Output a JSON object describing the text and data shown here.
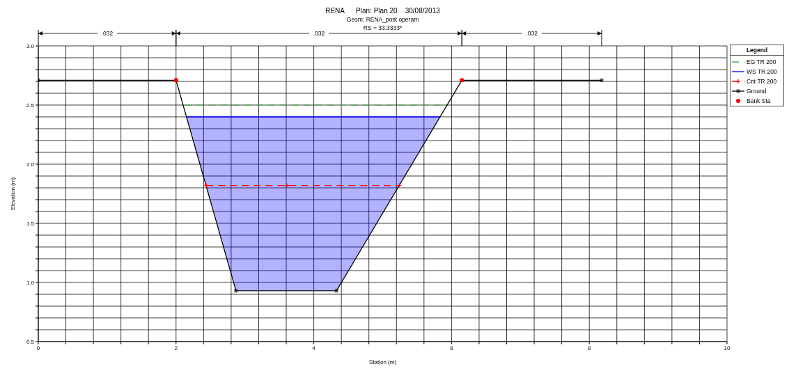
{
  "chart_data": {
    "type": "line",
    "title": "RENA      Plan: Plan 20    30/08/2013",
    "subtitle": "Geom: RENA_post operam",
    "annotations": [
      "RS = 33.3333*",
      ".032",
      ".032",
      ".032"
    ],
    "xlabel": "Station (m)",
    "ylabel": "Elevation (m)",
    "legend_title": "Legend",
    "legend": "right",
    "grid": true,
    "xlim": [
      0,
      10
    ],
    "ylim": [
      0.5,
      3.0
    ],
    "xticks": [
      0,
      {
        "value": 0.4,
        "label": null
      },
      {
        "value": 0.8,
        "label": null
      },
      {
        "value": 1.2,
        "label": null
      },
      {
        "value": 1.6,
        "label": null
      },
      2,
      {
        "value": 2.4,
        "label": null
      },
      {
        "value": 2.8,
        "label": null
      },
      {
        "value": 3.2,
        "label": null
      },
      {
        "value": 3.6,
        "label": null
      },
      4,
      {
        "value": 4.4,
        "label": null
      },
      {
        "value": 4.8,
        "label": null
      },
      {
        "value": 5.2,
        "label": null
      },
      {
        "value": 5.6,
        "label": null
      },
      6,
      {
        "value": 6.4,
        "label": null
      },
      {
        "value": 6.8,
        "label": null
      },
      {
        "value": 7.2,
        "label": null
      },
      {
        "value": 7.6,
        "label": null
      },
      8,
      {
        "value": 8.4,
        "label": null
      },
      {
        "value": 8.8,
        "label": null
      },
      {
        "value": 9.2,
        "label": null
      },
      {
        "value": 9.6,
        "label": null
      },
      10
    ],
    "yticks": [
      0.5,
      {
        "value": 0.6,
        "label": null
      },
      {
        "value": 0.7,
        "label": null
      },
      {
        "value": 0.8,
        "label": null
      },
      {
        "value": 0.9,
        "label": null
      },
      {
        "value": 1,
        "label": "1.0"
      },
      {
        "value": 1.1,
        "label": null
      },
      {
        "value": 1.2,
        "label": null
      },
      {
        "value": 1.3,
        "label": null
      },
      {
        "value": 1.4,
        "label": null
      },
      1.5,
      {
        "value": 1.6,
        "label": null
      },
      {
        "value": 1.7,
        "label": null
      },
      {
        "value": 1.8,
        "label": null
      },
      {
        "value": 1.9,
        "label": null
      },
      {
        "value": 2,
        "label": "2.0"
      },
      {
        "value": 2.1,
        "label": null
      },
      {
        "value": 2.2,
        "label": null
      },
      {
        "value": 2.3,
        "label": null
      },
      {
        "value": 2.4,
        "label": null
      },
      2.5,
      {
        "value": 2.6,
        "label": null
      },
      {
        "value": 2.7,
        "label": null
      },
      {
        "value": 2.8,
        "label": null
      },
      {
        "value": 2.9,
        "label": null
      },
      {
        "value": 3,
        "label": "3.0"
      }
    ],
    "series": [
      {
        "name": "EG TR 200",
        "type": "line",
        "color": "#5aa55a",
        "line_style": "dashed",
        "x": [
          2.13,
          5.93
        ],
        "values": [
          2.5,
          2.5
        ]
      },
      {
        "name": "WS TR 200",
        "type": "line",
        "color": "#0000ff",
        "x": [
          2.15,
          2.87,
          4.33,
          5.83
        ],
        "values": [
          2.4,
          2.4,
          2.4,
          2.4
        ],
        "lower": [
          2.4,
          0.93,
          0.93,
          2.4
        ],
        "upper": [
          2.4,
          2.4,
          2.4,
          2.4
        ]
      },
      {
        "name": "Crit TR 200",
        "type": "line",
        "color": "#ff0000",
        "line_style": "dashed",
        "marker": "cross",
        "x": [
          2.44,
          3.61,
          5.24
        ],
        "values": [
          1.82,
          1.82,
          1.82
        ]
      },
      {
        "name": "Ground",
        "type": "line",
        "color": "#000000",
        "marker": "square",
        "x": [
          0,
          2.0,
          2.87,
          4.33,
          6.15,
          8.18
        ],
        "values": [
          2.71,
          2.71,
          0.93,
          0.93,
          2.71,
          2.71
        ]
      },
      {
        "name": "Bank Sta",
        "type": "scatter",
        "color": "#ff0000",
        "marker": "circle",
        "x": [
          2.0,
          6.15
        ],
        "values": [
          2.71,
          2.71
        ]
      }
    ]
  }
}
